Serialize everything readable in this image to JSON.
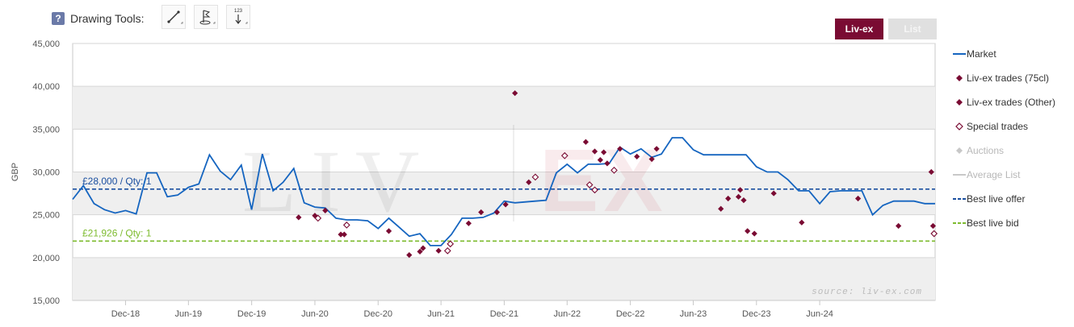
{
  "toolbar": {
    "help_label": "?",
    "title": "Drawing Tools:",
    "tools": [
      {
        "name": "line-tool",
        "icon": "line-icon"
      },
      {
        "name": "flag-tool",
        "icon": "flag-icon"
      },
      {
        "name": "measure-tool",
        "icon": "measure-icon",
        "label": "123"
      }
    ]
  },
  "tabs": [
    {
      "label": "Liv-ex",
      "active": true
    },
    {
      "label": "List",
      "active": false
    }
  ],
  "colors": {
    "market": "#1565c0",
    "trades": "#7a0b33",
    "offer": "#1a4fa0",
    "bid": "#7dbb2e",
    "band": "#efefef",
    "average": "#c8c8c8",
    "auctions": "#c8c8c8"
  },
  "chart_data": {
    "type": "line",
    "ylabel": "GBP",
    "ylim": [
      15000,
      45000
    ],
    "yticks": [
      15000,
      20000,
      25000,
      30000,
      35000,
      40000,
      45000
    ],
    "ytick_labels": [
      "15,000",
      "20,000",
      "25,000",
      "30,000",
      "35,000",
      "40,000",
      "45,000"
    ],
    "xlim": [
      "2018-07-01",
      "2025-05-01"
    ],
    "xticks": [
      "2018-12-01",
      "2019-06-01",
      "2019-12-01",
      "2020-06-01",
      "2020-12-01",
      "2021-06-01",
      "2021-12-01",
      "2022-06-01",
      "2022-12-01",
      "2023-06-01",
      "2023-12-01",
      "2024-06-01"
    ],
    "xtick_labels": [
      "Dec-18",
      "Jun-19",
      "Dec-19",
      "Jun-20",
      "Dec-20",
      "Jun-21",
      "Dec-21",
      "Jun-22",
      "Dec-22",
      "Jun-23",
      "Dec-23",
      "Jun-24"
    ],
    "watermark": "LIV|EX",
    "source_note": "source: liv-ex.com",
    "legend": [
      {
        "label": "Market",
        "symbol": "line",
        "color_key": "market",
        "enabled": true
      },
      {
        "label": "Liv-ex trades (75cl)",
        "symbol": "diamond",
        "color_key": "trades",
        "enabled": true
      },
      {
        "label": "Liv-ex trades (Other)",
        "symbol": "diamond",
        "color_key": "trades",
        "enabled": true
      },
      {
        "label": "Special trades",
        "symbol": "diamond-open",
        "color_key": "trades",
        "enabled": true
      },
      {
        "label": "Auctions",
        "symbol": "diamond",
        "color_key": "auctions",
        "enabled": false
      },
      {
        "label": "Average List",
        "symbol": "line",
        "color_key": "average",
        "enabled": false
      },
      {
        "label": "Best live offer",
        "symbol": "dash",
        "color_key": "offer",
        "enabled": true
      },
      {
        "label": "Best live bid",
        "symbol": "dash",
        "color_key": "bid",
        "enabled": true
      }
    ],
    "reference_lines": [
      {
        "name": "Best live offer",
        "y": 28000,
        "label": "£28,000 / Qty: 1",
        "color_key": "offer"
      },
      {
        "name": "Best live bid",
        "y": 21926,
        "label": "£21,926 / Qty: 1",
        "color_key": "bid"
      }
    ],
    "series": [
      {
        "name": "Market",
        "type": "line",
        "points": [
          [
            "2018-07-01",
            26800
          ],
          [
            "2018-08-01",
            28400
          ],
          [
            "2018-09-01",
            26300
          ],
          [
            "2018-10-01",
            25600
          ],
          [
            "2018-11-01",
            25200
          ],
          [
            "2018-12-01",
            25500
          ],
          [
            "2019-01-01",
            25100
          ],
          [
            "2019-02-01",
            29900
          ],
          [
            "2019-03-01",
            29900
          ],
          [
            "2019-04-01",
            27100
          ],
          [
            "2019-05-01",
            27300
          ],
          [
            "2019-06-01",
            28200
          ],
          [
            "2019-07-01",
            28600
          ],
          [
            "2019-08-01",
            32000
          ],
          [
            "2019-09-01",
            30100
          ],
          [
            "2019-10-01",
            29100
          ],
          [
            "2019-11-01",
            30800
          ],
          [
            "2019-12-01",
            25600
          ],
          [
            "2020-01-01",
            32100
          ],
          [
            "2020-02-01",
            27800
          ],
          [
            "2020-03-01",
            28800
          ],
          [
            "2020-04-01",
            30400
          ],
          [
            "2020-05-01",
            26400
          ],
          [
            "2020-06-01",
            25900
          ],
          [
            "2020-07-01",
            25800
          ],
          [
            "2020-08-01",
            24600
          ],
          [
            "2020-09-01",
            24400
          ],
          [
            "2020-10-01",
            24400
          ],
          [
            "2020-11-01",
            24300
          ],
          [
            "2020-12-01",
            23400
          ],
          [
            "2021-01-01",
            24600
          ],
          [
            "2021-02-01",
            23500
          ],
          [
            "2021-03-01",
            22500
          ],
          [
            "2021-04-01",
            22800
          ],
          [
            "2021-05-01",
            21400
          ],
          [
            "2021-06-01",
            21400
          ],
          [
            "2021-07-01",
            22700
          ],
          [
            "2021-08-01",
            24600
          ],
          [
            "2021-09-01",
            24600
          ],
          [
            "2021-10-01",
            24700
          ],
          [
            "2021-11-01",
            25200
          ],
          [
            "2021-12-01",
            26600
          ],
          [
            "2022-01-01",
            26400
          ],
          [
            "2022-02-01",
            26500
          ],
          [
            "2022-03-01",
            26600
          ],
          [
            "2022-04-01",
            26700
          ],
          [
            "2022-05-01",
            29900
          ],
          [
            "2022-06-01",
            30900
          ],
          [
            "2022-07-01",
            29900
          ],
          [
            "2022-08-01",
            30900
          ],
          [
            "2022-09-01",
            30900
          ],
          [
            "2022-10-01",
            31000
          ],
          [
            "2022-11-01",
            32900
          ],
          [
            "2022-12-01",
            32100
          ],
          [
            "2023-01-01",
            32700
          ],
          [
            "2023-02-01",
            31700
          ],
          [
            "2023-03-01",
            32100
          ],
          [
            "2023-04-01",
            34000
          ],
          [
            "2023-05-01",
            34000
          ],
          [
            "2023-06-01",
            32600
          ],
          [
            "2023-07-01",
            32000
          ],
          [
            "2023-08-01",
            32000
          ],
          [
            "2023-09-01",
            32000
          ],
          [
            "2023-10-01",
            32000
          ],
          [
            "2023-11-01",
            32000
          ],
          [
            "2023-12-01",
            30600
          ],
          [
            "2024-01-01",
            30000
          ],
          [
            "2024-02-01",
            30000
          ],
          [
            "2024-03-01",
            29100
          ],
          [
            "2024-04-01",
            27800
          ],
          [
            "2024-05-01",
            27800
          ],
          [
            "2024-06-01",
            26300
          ],
          [
            "2024-07-01",
            27700
          ],
          [
            "2024-08-01",
            27800
          ],
          [
            "2024-09-01",
            27800
          ],
          [
            "2024-10-01",
            27800
          ],
          [
            "2024-11-01",
            25000
          ],
          [
            "2024-12-01",
            26100
          ],
          [
            "2025-01-01",
            26600
          ],
          [
            "2025-02-01",
            26600
          ],
          [
            "2025-03-01",
            26600
          ],
          [
            "2025-04-01",
            26300
          ],
          [
            "2025-05-01",
            26300
          ]
        ]
      },
      {
        "name": "Liv-ex trades (75cl)",
        "type": "scatter",
        "points": [
          [
            "2020-04-15",
            24700
          ],
          [
            "2020-06-01",
            24900
          ],
          [
            "2020-07-01",
            25500
          ],
          [
            "2020-08-15",
            22700
          ],
          [
            "2020-08-25",
            22700
          ],
          [
            "2021-01-01",
            23100
          ],
          [
            "2021-03-01",
            20300
          ],
          [
            "2021-04-01",
            20700
          ],
          [
            "2021-04-10",
            21100
          ],
          [
            "2021-05-25",
            20800
          ],
          [
            "2021-08-20",
            24000
          ],
          [
            "2021-09-25",
            25300
          ],
          [
            "2021-11-10",
            25300
          ],
          [
            "2021-12-05",
            26200
          ],
          [
            "2022-01-01",
            39200
          ],
          [
            "2022-02-10",
            28800
          ],
          [
            "2022-07-25",
            33500
          ],
          [
            "2022-08-20",
            32400
          ],
          [
            "2022-09-05",
            31400
          ],
          [
            "2022-09-15",
            32300
          ],
          [
            "2022-09-25",
            31000
          ],
          [
            "2022-11-01",
            32700
          ],
          [
            "2022-12-20",
            31800
          ],
          [
            "2023-02-01",
            31500
          ],
          [
            "2023-02-15",
            32700
          ],
          [
            "2023-08-20",
            25700
          ],
          [
            "2023-09-10",
            26900
          ],
          [
            "2023-10-10",
            27100
          ],
          [
            "2023-10-15",
            27900
          ],
          [
            "2023-10-25",
            26700
          ],
          [
            "2023-11-05",
            23100
          ],
          [
            "2023-11-25",
            22800
          ],
          [
            "2024-01-20",
            27500
          ],
          [
            "2024-04-10",
            24100
          ],
          [
            "2024-09-20",
            26900
          ],
          [
            "2025-01-15",
            23700
          ],
          [
            "2025-04-20",
            30000
          ],
          [
            "2025-04-25",
            23700
          ]
        ]
      },
      {
        "name": "Special trades",
        "type": "scatter-open",
        "points": [
          [
            "2020-06-10",
            24600
          ],
          [
            "2020-09-01",
            23800
          ],
          [
            "2021-06-20",
            20800
          ],
          [
            "2021-06-28",
            21600
          ],
          [
            "2022-03-01",
            29400
          ],
          [
            "2022-05-25",
            31900
          ],
          [
            "2022-08-05",
            28500
          ],
          [
            "2022-08-20",
            27900
          ],
          [
            "2022-10-15",
            30200
          ],
          [
            "2025-04-28",
            22800
          ]
        ]
      }
    ]
  }
}
